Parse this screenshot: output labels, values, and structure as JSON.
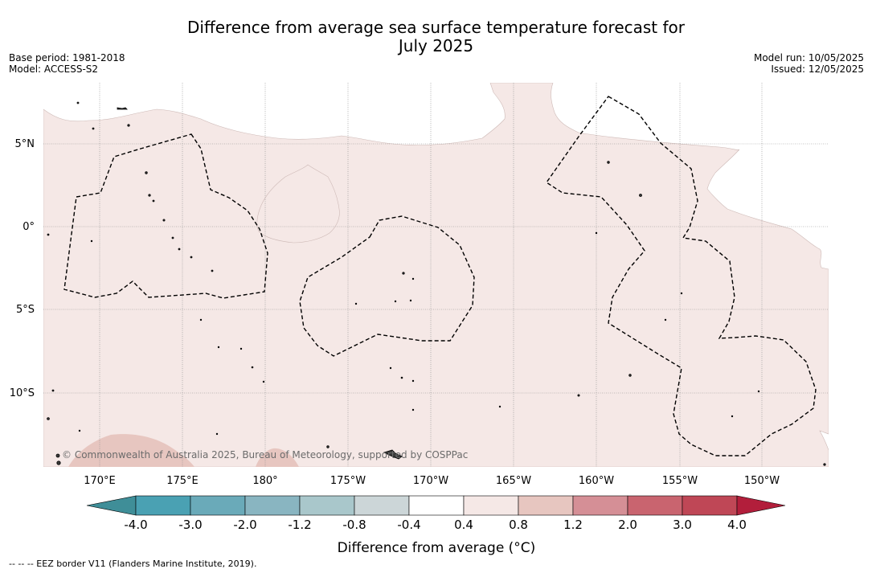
{
  "title": {
    "line1": "Difference from average sea surface temperature forecast for",
    "line2": "July 2025"
  },
  "meta_left": {
    "base_period": "Base period: 1981-2018",
    "model": "Model: ACCESS-S2"
  },
  "meta_right": {
    "model_run": "Model run: 10/05/2025",
    "issued": "Issued: 12/05/2025"
  },
  "map": {
    "lat_labels": [
      "5°N",
      "0°",
      "5°S",
      "10°S"
    ],
    "lon_labels": [
      "170°E",
      "175°E",
      "180°",
      "175°W",
      "170°W",
      "165°W",
      "160°W",
      "155°W",
      "150°W"
    ],
    "copyright": "© Commonwealth of Australia 2025, Bureau of Meteorology, supported by COSPPac",
    "colors": {
      "anomaly_04_08": "#f5e8e6",
      "anomaly_08_12": "#e7c6c0",
      "land": "#3a3a3a",
      "eez_border": "#000000",
      "grid": "#777777"
    }
  },
  "colorbar": {
    "ticks": [
      "-4.0",
      "-3.0",
      "-2.0",
      "-1.2",
      "-0.8",
      "-0.4",
      "0.4",
      "0.8",
      "1.2",
      "2.0",
      "3.0",
      "4.0"
    ],
    "colors": [
      "#3f8e98",
      "#4aa1b3",
      "#6aaab9",
      "#89b5c1",
      "#a9c7cb",
      "#ccd6d8",
      "#ffffff",
      "#f5e8e6",
      "#e7c6c0",
      "#d58f96",
      "#c9646f",
      "#bf4756",
      "#b21e3b"
    ],
    "label": "Difference from average (°C)"
  },
  "footnote": "-- -- -- EEZ border V11 (Flanders Marine Institute, 2019)."
}
